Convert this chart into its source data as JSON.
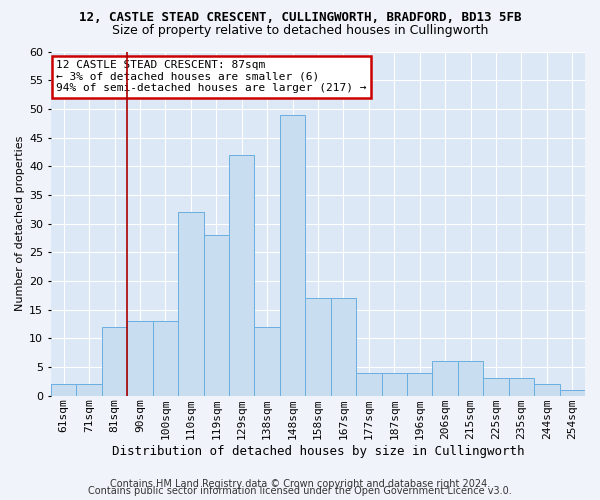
{
  "title_line1": "12, CASTLE STEAD CRESCENT, CULLINGWORTH, BRADFORD, BD13 5FB",
  "title_line2": "Size of property relative to detached houses in Cullingworth",
  "xlabel": "Distribution of detached houses by size in Cullingworth",
  "ylabel": "Number of detached properties",
  "categories": [
    "61sqm",
    "71sqm",
    "81sqm",
    "90sqm",
    "100sqm",
    "110sqm",
    "119sqm",
    "129sqm",
    "138sqm",
    "148sqm",
    "158sqm",
    "167sqm",
    "177sqm",
    "187sqm",
    "196sqm",
    "206sqm",
    "215sqm",
    "225sqm",
    "235sqm",
    "244sqm",
    "254sqm"
  ],
  "values": [
    2,
    2,
    12,
    13,
    13,
    32,
    28,
    42,
    12,
    49,
    17,
    17,
    4,
    4,
    4,
    6,
    6,
    3,
    3,
    2,
    1
  ],
  "bar_color": "#c9ddf0",
  "bar_edge_color": "#6aaee0",
  "property_line_color": "#aa0000",
  "annotation_text": "12 CASTLE STEAD CRESCENT: 87sqm\n← 3% of detached houses are smaller (6)\n94% of semi-detached houses are larger (217) →",
  "annotation_box_color": "#ffffff",
  "annotation_box_edge": "#cc0000",
  "ylim": [
    0,
    60
  ],
  "yticks": [
    0,
    5,
    10,
    15,
    20,
    25,
    30,
    35,
    40,
    45,
    50,
    55,
    60
  ],
  "footer_line1": "Contains HM Land Registry data © Crown copyright and database right 2024.",
  "footer_line2": "Contains public sector information licensed under the Open Government Licence v3.0.",
  "fig_bg_color": "#f0f4fa",
  "plot_bg_color": "#dce8f5",
  "title1_fontsize": 9,
  "title2_fontsize": 9,
  "xlabel_fontsize": 9,
  "ylabel_fontsize": 8,
  "tick_fontsize": 8,
  "footer_fontsize": 7
}
